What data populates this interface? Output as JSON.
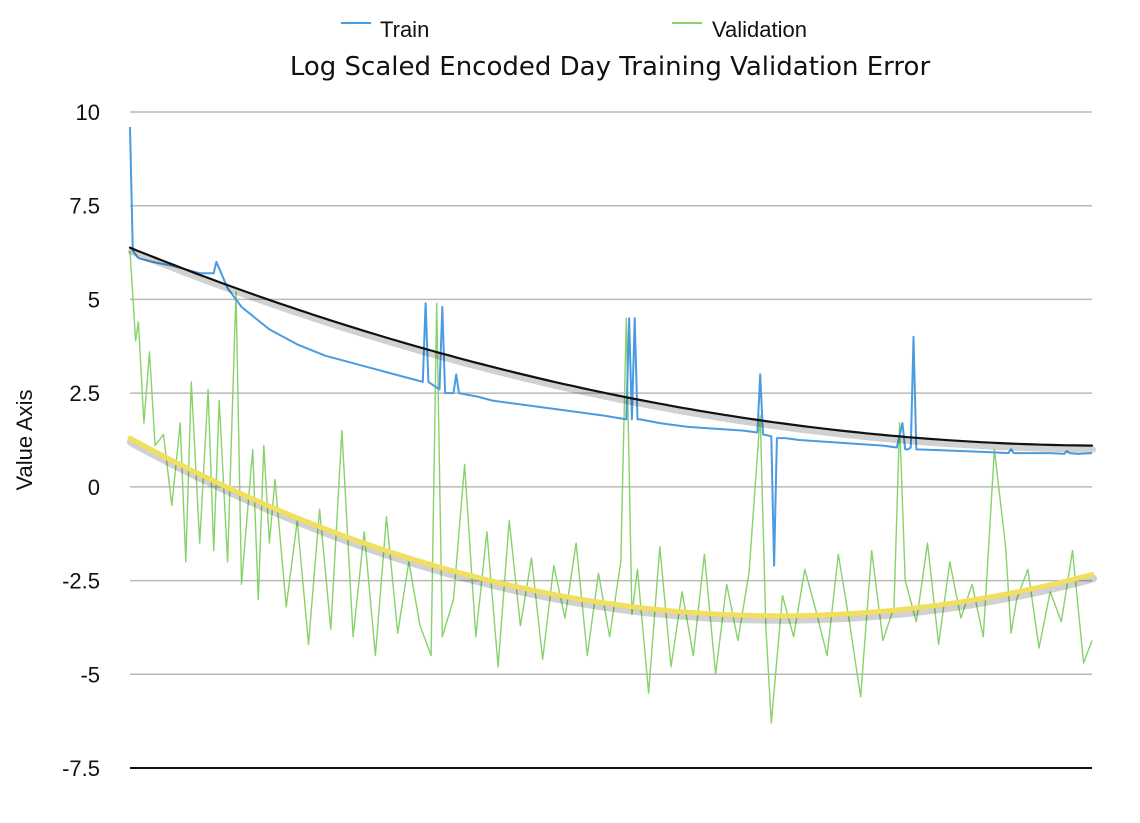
{
  "chart_data": {
    "type": "line",
    "title": "Log Scaled Encoded Day Training Validation Error",
    "xlabel": "",
    "ylabel": "Value Axis",
    "ylim": [
      -7.5,
      10
    ],
    "yticks": [
      "10",
      "7.5",
      "5",
      "2.5",
      "0",
      "-2.5",
      "-5",
      "-7.5"
    ],
    "ytick_values": [
      10,
      7.5,
      5,
      2.5,
      0,
      -2.5,
      -5,
      -7.5
    ],
    "grid": true,
    "legend": {
      "placement": "top",
      "entries": [
        "Train",
        "Validation"
      ]
    },
    "colors": {
      "train": "#4a9be0",
      "validation": "#86d36a",
      "train_trend": "#111111",
      "validation_trend": "#f2df5e",
      "grid": "#b9b9b9",
      "axis": "#111111"
    },
    "series": [
      {
        "name": "Train",
        "x": [
          0,
          1,
          3,
          8,
          15,
          25,
          30,
          31,
          35,
          37,
          40,
          50,
          60,
          70,
          80,
          90,
          100,
          105,
          106,
          107,
          111,
          112,
          113,
          116,
          117,
          118,
          125,
          130,
          140,
          150,
          160,
          170,
          178,
          179,
          180,
          181,
          182,
          183,
          190,
          200,
          210,
          220,
          225,
          226,
          227,
          230,
          231,
          232,
          235,
          240,
          250,
          260,
          270,
          275,
          277,
          278,
          279,
          280,
          281,
          282,
          290,
          300,
          310,
          315,
          316,
          317,
          320,
          330,
          335,
          336,
          337,
          340,
          345
        ],
        "y": [
          9.6,
          6.3,
          6.1,
          6.0,
          5.9,
          5.7,
          5.7,
          6.0,
          5.3,
          5.1,
          4.8,
          4.2,
          3.8,
          3.5,
          3.3,
          3.1,
          2.9,
          2.8,
          4.9,
          2.8,
          2.6,
          4.8,
          2.5,
          2.5,
          3.0,
          2.5,
          2.4,
          2.3,
          2.2,
          2.1,
          2.0,
          1.9,
          1.8,
          4.5,
          1.8,
          4.5,
          1.8,
          1.8,
          1.7,
          1.6,
          1.55,
          1.5,
          1.45,
          3.0,
          1.4,
          1.35,
          -2.1,
          1.3,
          1.3,
          1.25,
          1.2,
          1.15,
          1.1,
          1.05,
          1.7,
          1.0,
          1.0,
          1.05,
          4.0,
          1.0,
          0.98,
          0.95,
          0.92,
          0.9,
          1.0,
          0.9,
          0.9,
          0.9,
          0.88,
          0.95,
          0.9,
          0.88,
          0.9
        ]
      },
      {
        "name": "Validation",
        "x": [
          0,
          2,
          3,
          5,
          7,
          9,
          12,
          15,
          18,
          20,
          22,
          25,
          28,
          30,
          32,
          35,
          38,
          40,
          44,
          46,
          48,
          50,
          52,
          56,
          60,
          64,
          68,
          72,
          76,
          80,
          84,
          88,
          92,
          96,
          100,
          104,
          108,
          110,
          112,
          116,
          120,
          124,
          128,
          132,
          136,
          140,
          144,
          148,
          152,
          156,
          160,
          164,
          168,
          172,
          176,
          178,
          180,
          182,
          186,
          190,
          194,
          198,
          202,
          206,
          210,
          214,
          218,
          222,
          226,
          228,
          230,
          234,
          238,
          242,
          246,
          250,
          254,
          258,
          262,
          266,
          270,
          274,
          276,
          278,
          282,
          286,
          290,
          294,
          298,
          302,
          306,
          310,
          314,
          316,
          318,
          322,
          326,
          330,
          334,
          338,
          342,
          345
        ],
        "y": [
          6.3,
          3.9,
          4.4,
          1.7,
          3.6,
          1.1,
          1.4,
          -0.5,
          1.7,
          -2.0,
          2.8,
          -1.5,
          2.6,
          -1.7,
          2.3,
          -2.0,
          5.2,
          -2.6,
          1.0,
          -3.0,
          1.1,
          -1.5,
          0.2,
          -3.2,
          -0.9,
          -4.2,
          -0.6,
          -3.8,
          1.5,
          -4.0,
          -1.2,
          -4.5,
          -0.8,
          -3.9,
          -2.0,
          -3.7,
          -4.5,
          4.9,
          -4.0,
          -3.0,
          0.6,
          -4.0,
          -1.2,
          -4.8,
          -0.9,
          -3.7,
          -1.9,
          -4.6,
          -2.1,
          -3.5,
          -1.5,
          -4.5,
          -2.3,
          -4.0,
          -2.0,
          4.5,
          -3.4,
          -2.2,
          -5.5,
          -1.6,
          -4.8,
          -2.8,
          -4.5,
          -1.8,
          -5.0,
          -2.6,
          -4.1,
          -2.3,
          1.9,
          -3.7,
          -6.3,
          -2.9,
          -4.0,
          -2.2,
          -3.3,
          -4.5,
          -1.8,
          -3.6,
          -5.6,
          -1.7,
          -4.1,
          -3.2,
          1.7,
          -2.5,
          -3.6,
          -1.5,
          -4.2,
          -2.0,
          -3.5,
          -2.6,
          -4.0,
          1.0,
          -1.6,
          -3.9,
          -3.0,
          -2.2,
          -4.3,
          -2.8,
          -3.6,
          -1.7,
          -4.7,
          -4.1
        ]
      }
    ],
    "trendlines": [
      {
        "series": "Train",
        "type": "polynomial",
        "x": [
          0,
          345
        ],
        "coefficients": [
          6.38,
          -0.03,
          4.26e-05
        ]
      },
      {
        "series": "Validation",
        "type": "polynomial",
        "x": [
          0,
          345
        ],
        "coefficients": [
          1.3,
          -0.0407,
          8.74e-05
        ]
      }
    ]
  }
}
